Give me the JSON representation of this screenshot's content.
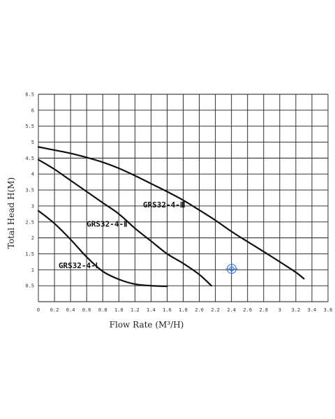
{
  "chart_data": {
    "type": "line",
    "title": "",
    "xlabel": "Flow Rate (M³/H)",
    "ylabel": "Total Head H(M)",
    "xlim": [
      0,
      3.6
    ],
    "ylim": [
      0,
      6.5
    ],
    "x_ticks": [
      "0",
      "0.2",
      "0.4",
      "0.6",
      "0.8",
      "1.0",
      "1.2",
      "1.4",
      "1.6",
      "1.8",
      "2.0",
      "2.2",
      "2.4",
      "2.6",
      "2.8",
      "3",
      "3.2",
      "3.4",
      "3.6"
    ],
    "y_ticks": [
      "0.5",
      "1",
      "1.5",
      "2",
      "2.5",
      "3",
      "3.5",
      "4",
      "4.5",
      "5",
      "5.5",
      "6",
      "6.5"
    ],
    "grid": true,
    "series": [
      {
        "name": "GRS32-4-Ⅰ",
        "x": [
          0,
          0.2,
          0.4,
          0.6,
          0.8,
          1.0,
          1.2,
          1.4,
          1.6
        ],
        "y": [
          2.85,
          2.45,
          1.95,
          1.4,
          0.95,
          0.7,
          0.55,
          0.5,
          0.48
        ]
      },
      {
        "name": "GRS32-4-Ⅱ",
        "x": [
          0,
          0.2,
          0.4,
          0.6,
          0.8,
          1.0,
          1.2,
          1.4,
          1.6,
          1.8,
          2.0,
          2.15
        ],
        "y": [
          4.45,
          4.15,
          3.8,
          3.45,
          3.1,
          2.75,
          2.3,
          1.9,
          1.5,
          1.2,
          0.85,
          0.5
        ]
      },
      {
        "name": "GRS32-4-Ⅲ",
        "x": [
          0,
          0.2,
          0.4,
          0.6,
          0.8,
          1.0,
          1.2,
          1.4,
          1.6,
          1.8,
          2.0,
          2.2,
          2.4,
          2.6,
          2.8,
          3.0,
          3.2,
          3.3
        ],
        "y": [
          4.85,
          4.75,
          4.65,
          4.52,
          4.37,
          4.18,
          3.95,
          3.7,
          3.45,
          3.18,
          2.87,
          2.55,
          2.2,
          1.88,
          1.57,
          1.25,
          0.92,
          0.72
        ]
      }
    ],
    "labels": [
      {
        "text": "GRS32-4-Ⅰ",
        "x": 0.25,
        "y": 1.05
      },
      {
        "text": "GRS32-4-Ⅱ",
        "x": 0.6,
        "y": 2.35
      },
      {
        "text": "GRS32-4-Ⅲ",
        "x": 1.3,
        "y": 2.95
      }
    ]
  },
  "colors": {
    "grid": "#1a1a1a",
    "curve": "#111111",
    "marker": "#2f6fd0"
  }
}
